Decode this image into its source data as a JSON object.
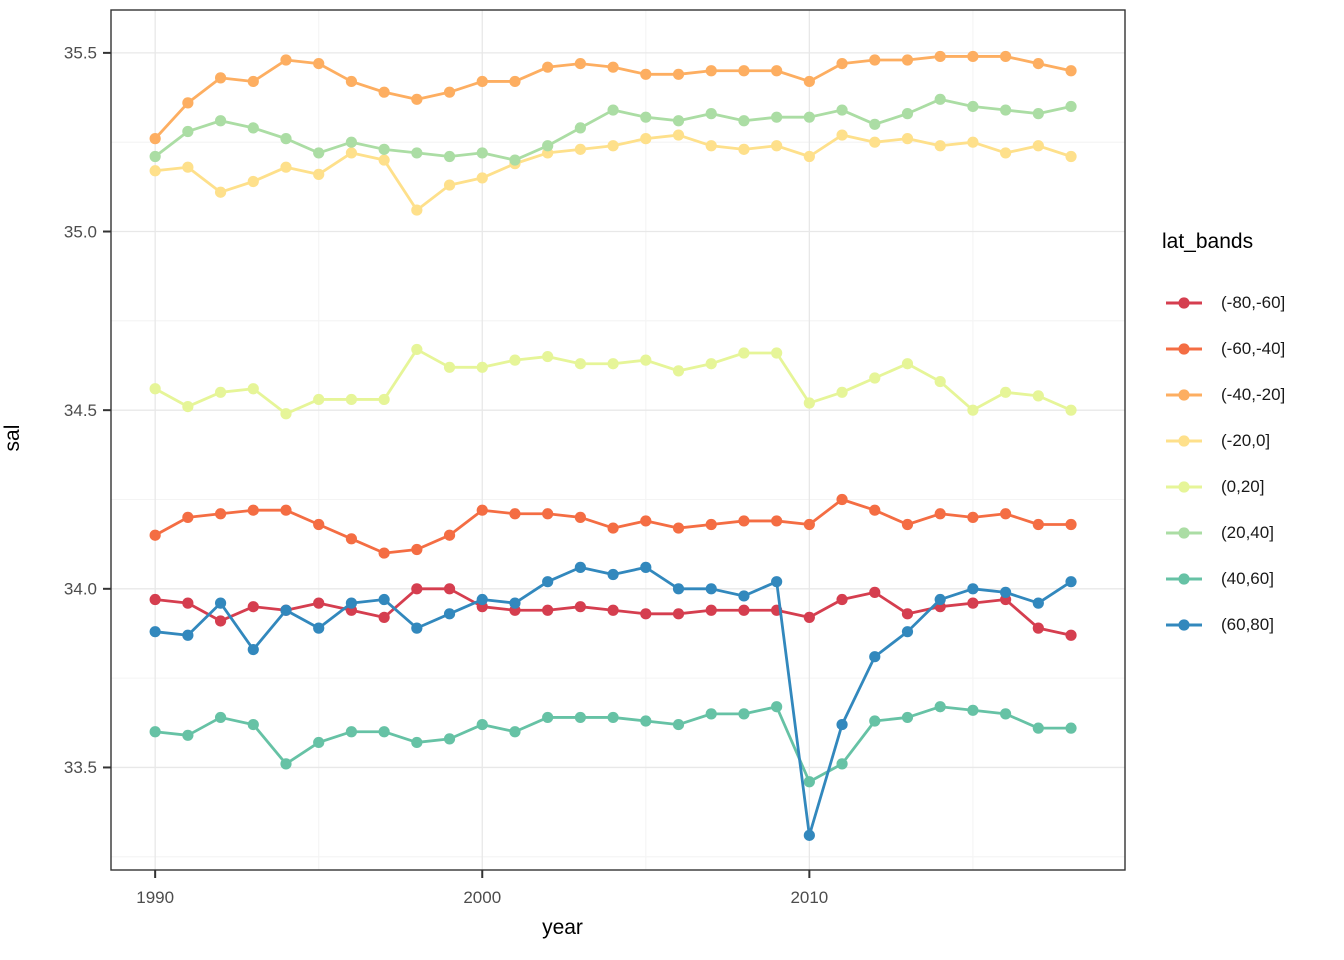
{
  "chart_data": {
    "type": "line",
    "title": "",
    "xlabel": "year",
    "ylabel": "sal",
    "legend_title": "lat_bands",
    "legend_position": "right",
    "grid": true,
    "x_ticks": [
      "1990",
      "2000",
      "2010"
    ],
    "x_tick_values": [
      1990,
      2000,
      2010
    ],
    "x_minor": [
      1995,
      2005,
      2015
    ],
    "y_ticks": [
      "33.5",
      "34.0",
      "34.5",
      "35.0",
      "35.5"
    ],
    "y_tick_values": [
      33.5,
      34.0,
      34.5,
      35.0,
      35.5
    ],
    "y_minor": [
      33.25,
      33.75,
      34.25,
      34.75,
      35.25
    ],
    "xlim": [
      1988.65,
      2019.65
    ],
    "ylim": [
      33.213,
      35.62
    ],
    "x": [
      1990,
      1991,
      1992,
      1993,
      1994,
      1995,
      1996,
      1997,
      1998,
      1999,
      2000,
      2001,
      2002,
      2003,
      2004,
      2005,
      2006,
      2007,
      2008,
      2009,
      2010,
      2011,
      2012,
      2013,
      2014,
      2015,
      2016,
      2017,
      2018
    ],
    "series": [
      {
        "name": "(-80,-60]",
        "color": "#d53e4f",
        "values": [
          33.97,
          33.96,
          33.91,
          33.95,
          33.94,
          33.96,
          33.94,
          33.92,
          34.0,
          34.0,
          33.95,
          33.94,
          33.94,
          33.95,
          33.94,
          33.93,
          33.93,
          33.94,
          33.94,
          33.94,
          33.92,
          33.97,
          33.99,
          33.93,
          33.95,
          33.96,
          33.97,
          33.89,
          33.87
        ]
      },
      {
        "name": "(-60,-40]",
        "color": "#f46d43",
        "values": [
          34.15,
          34.2,
          34.21,
          34.22,
          34.22,
          34.18,
          34.14,
          34.1,
          34.11,
          34.15,
          34.22,
          34.21,
          34.21,
          34.2,
          34.17,
          34.19,
          34.17,
          34.18,
          34.19,
          34.19,
          34.18,
          34.25,
          34.22,
          34.18,
          34.21,
          34.2,
          34.21,
          34.18,
          34.18
        ]
      },
      {
        "name": "(-40,-20]",
        "color": "#fdae61",
        "values": [
          35.26,
          35.36,
          35.43,
          35.42,
          35.48,
          35.47,
          35.42,
          35.39,
          35.37,
          35.39,
          35.42,
          35.42,
          35.46,
          35.47,
          35.46,
          35.44,
          35.44,
          35.45,
          35.45,
          35.45,
          35.42,
          35.47,
          35.48,
          35.48,
          35.49,
          35.49,
          35.49,
          35.47,
          35.45
        ]
      },
      {
        "name": "(-20,0]",
        "color": "#fee08b",
        "values": [
          35.17,
          35.18,
          35.11,
          35.14,
          35.18,
          35.16,
          35.22,
          35.2,
          35.06,
          35.13,
          35.15,
          35.19,
          35.22,
          35.23,
          35.24,
          35.26,
          35.27,
          35.24,
          35.23,
          35.24,
          35.21,
          35.27,
          35.25,
          35.26,
          35.24,
          35.25,
          35.22,
          35.24,
          35.21
        ]
      },
      {
        "name": "(0,20]",
        "color": "#e6f598",
        "values": [
          34.56,
          34.51,
          34.55,
          34.56,
          34.49,
          34.53,
          34.53,
          34.53,
          34.67,
          34.62,
          34.62,
          34.64,
          34.65,
          34.63,
          34.63,
          34.64,
          34.61,
          34.63,
          34.66,
          34.66,
          34.52,
          34.55,
          34.59,
          34.63,
          34.58,
          34.5,
          34.55,
          34.54,
          34.5
        ]
      },
      {
        "name": "(20,40]",
        "color": "#abdda4",
        "values": [
          35.21,
          35.28,
          35.31,
          35.29,
          35.26,
          35.22,
          35.25,
          35.23,
          35.22,
          35.21,
          35.22,
          35.2,
          35.24,
          35.29,
          35.34,
          35.32,
          35.31,
          35.33,
          35.31,
          35.32,
          35.32,
          35.34,
          35.3,
          35.33,
          35.37,
          35.35,
          35.34,
          35.33,
          35.35
        ]
      },
      {
        "name": "(40,60]",
        "color": "#66c2a5",
        "values": [
          33.6,
          33.59,
          33.64,
          33.62,
          33.51,
          33.57,
          33.6,
          33.6,
          33.57,
          33.58,
          33.62,
          33.6,
          33.64,
          33.64,
          33.64,
          33.63,
          33.62,
          33.65,
          33.65,
          33.67,
          33.46,
          33.51,
          33.63,
          33.64,
          33.67,
          33.66,
          33.65,
          33.61,
          33.61
        ]
      },
      {
        "name": "(60,80]",
        "color": "#3288bd",
        "values": [
          33.88,
          33.87,
          33.96,
          33.83,
          33.94,
          33.89,
          33.96,
          33.97,
          33.89,
          33.93,
          33.97,
          33.96,
          34.02,
          34.06,
          34.04,
          34.06,
          34.0,
          34.0,
          33.98,
          34.02,
          33.31,
          33.62,
          33.81,
          33.88,
          33.97,
          34.0,
          33.99,
          33.96,
          34.02
        ]
      }
    ],
    "style": {
      "panel_bg": "#ffffff",
      "panel_border": "#333333",
      "grid_major": "#e8e8e8",
      "grid_minor": "#f4f4f4",
      "tick_color": "#333333",
      "tick_label_color": "#4d4d4d",
      "line_width": 2.8,
      "point_radius": 5.6
    }
  }
}
